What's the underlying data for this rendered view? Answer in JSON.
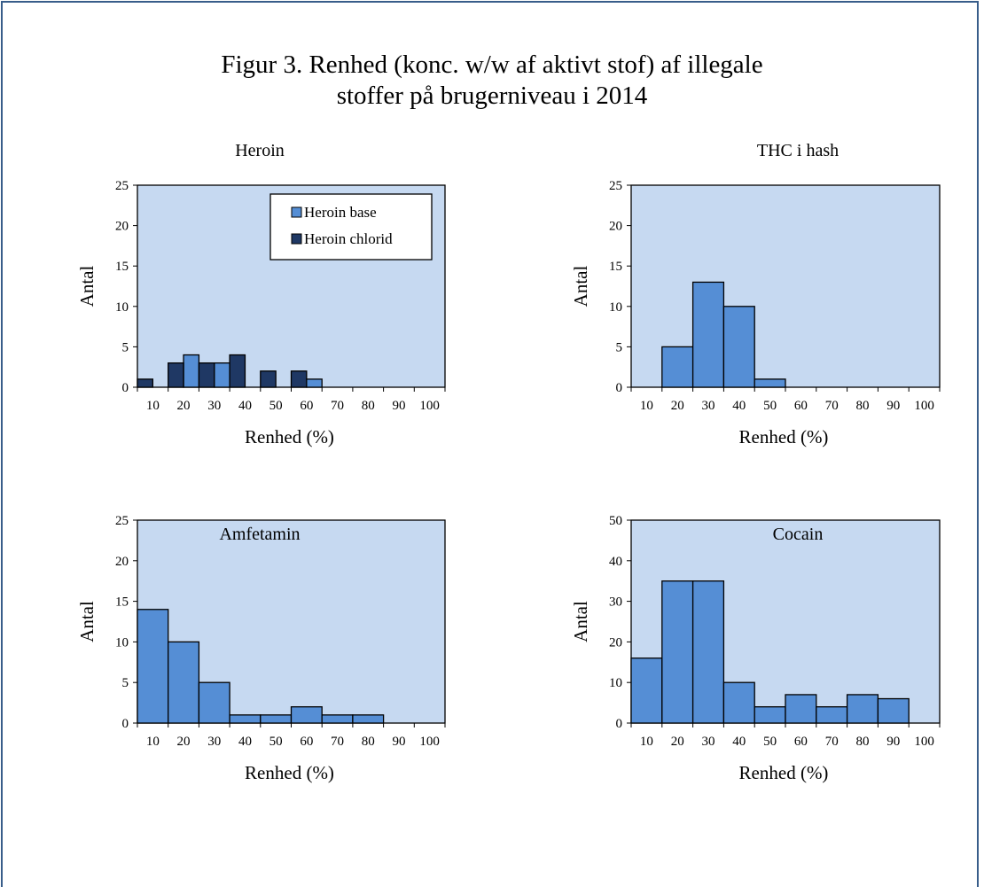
{
  "figure": {
    "title_line1": "Figur 3. Renhed (konc. w/w af aktivt stof) af illegale",
    "title_line2": "stoffer på brugerniveau i 2014"
  },
  "colors": {
    "plot_background": "#c6d9f1",
    "series_base": "#558ed5",
    "series_chlorid": "#1f3864",
    "frame_border": "#385d8a"
  },
  "chart_data": [
    {
      "type": "bar",
      "title": "Heroin",
      "xlabel": "Renhed (%)",
      "ylabel": "Antal",
      "ylim": [
        0,
        25
      ],
      "yticks": [
        "0",
        "5",
        "10",
        "15",
        "20",
        "25"
      ],
      "categories": [
        "10",
        "20",
        "30",
        "40",
        "50",
        "60",
        "70",
        "80",
        "90",
        "100"
      ],
      "legend": "top-right",
      "series": [
        {
          "name": "Heroin base",
          "values": [
            0,
            4,
            3,
            0,
            0,
            1,
            0,
            0,
            0,
            0
          ]
        },
        {
          "name": "Heroin chlorid",
          "values": [
            1,
            3,
            3,
            4,
            2,
            2,
            0,
            0,
            0,
            0
          ]
        }
      ]
    },
    {
      "type": "bar",
      "title": "THC i hash",
      "xlabel": "Renhed (%)",
      "ylabel": "Antal",
      "ylim": [
        0,
        25
      ],
      "yticks": [
        "0",
        "5",
        "10",
        "15",
        "20",
        "25"
      ],
      "categories": [
        "10",
        "20",
        "30",
        "40",
        "50",
        "60",
        "70",
        "80",
        "90",
        "100"
      ],
      "series": [
        {
          "values": [
            0,
            5,
            13,
            10,
            1,
            0,
            0,
            0,
            0,
            0
          ]
        }
      ]
    },
    {
      "type": "bar",
      "title": "Amfetamin",
      "xlabel": "Renhed (%)",
      "ylabel": "Antal",
      "ylim": [
        0,
        25
      ],
      "yticks": [
        "0",
        "5",
        "10",
        "15",
        "20",
        "25"
      ],
      "categories": [
        "10",
        "20",
        "30",
        "40",
        "50",
        "60",
        "70",
        "80",
        "90",
        "100"
      ],
      "series": [
        {
          "values": [
            14,
            10,
            5,
            1,
            1,
            2,
            1,
            1,
            0,
            0
          ]
        }
      ]
    },
    {
      "type": "bar",
      "title": "Cocain",
      "xlabel": "Renhed (%)",
      "ylabel": "Antal",
      "ylim": [
        0,
        50
      ],
      "yticks": [
        "0",
        "10",
        "20",
        "30",
        "40",
        "50"
      ],
      "categories": [
        "10",
        "20",
        "30",
        "40",
        "50",
        "60",
        "70",
        "80",
        "90",
        "100"
      ],
      "series": [
        {
          "values": [
            16,
            35,
            35,
            10,
            4,
            7,
            4,
            7,
            6,
            0
          ]
        }
      ]
    }
  ]
}
